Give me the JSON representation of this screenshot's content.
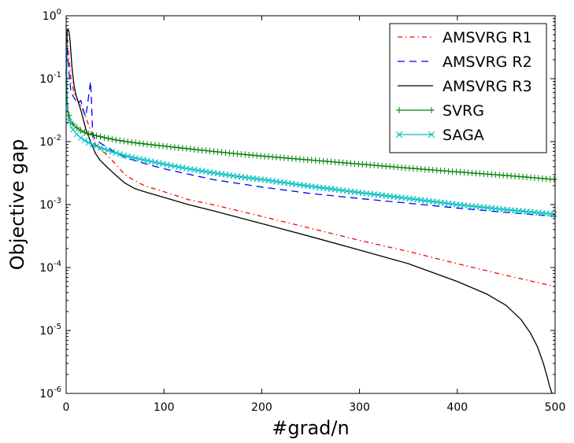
{
  "chart_data": {
    "type": "line",
    "title": "",
    "xlabel": "#grad/n",
    "ylabel": "Objective gap",
    "xlim": [
      0,
      500
    ],
    "ylim_log10": [
      -6,
      0
    ],
    "yscale": "log",
    "grid": false,
    "legend_position": "top-right",
    "x_ticks": [
      {
        "value": 0,
        "label": "0"
      },
      {
        "value": 100,
        "label": "100"
      },
      {
        "value": 200,
        "label": "200"
      },
      {
        "value": 300,
        "label": "300"
      },
      {
        "value": 400,
        "label": "400"
      },
      {
        "value": 500,
        "label": "500"
      }
    ],
    "y_ticks": [
      {
        "exp": 0,
        "base": "10",
        "sup": "0"
      },
      {
        "exp": -1,
        "base": "10",
        "sup": "-1"
      },
      {
        "exp": -2,
        "base": "10",
        "sup": "-2"
      },
      {
        "exp": -3,
        "base": "10",
        "sup": "-3"
      },
      {
        "exp": -4,
        "base": "10",
        "sup": "-4"
      },
      {
        "exp": -5,
        "base": "10",
        "sup": "-5"
      },
      {
        "exp": -6,
        "base": "10",
        "sup": "-6"
      }
    ],
    "series": [
      {
        "name": "AMSVRG R1",
        "color": "#ff0000",
        "style": "dashdot",
        "marker": "none",
        "x": [
          0,
          1,
          2,
          3,
          5,
          8,
          12,
          16,
          20,
          25,
          30,
          35,
          40,
          50,
          60,
          70,
          80,
          100,
          125,
          150,
          200,
          250,
          300,
          350,
          400,
          450,
          500
        ],
        "y": [
          0.12,
          0.45,
          0.32,
          0.2,
          0.1,
          0.06,
          0.045,
          0.035,
          0.025,
          0.015,
          0.009,
          0.0075,
          0.0065,
          0.0045,
          0.003,
          0.0024,
          0.002,
          0.0016,
          0.0012,
          0.001,
          0.00065,
          0.00042,
          0.00027,
          0.00018,
          0.000115,
          7.5e-05,
          5e-05
        ]
      },
      {
        "name": "AMSVRG R2",
        "color": "#0000ff",
        "style": "dashed",
        "marker": "none",
        "x": [
          0,
          1,
          2,
          3,
          5,
          8,
          12,
          15,
          18,
          20,
          22,
          24,
          25,
          26,
          27,
          28,
          30,
          35,
          40,
          50,
          60,
          80,
          100,
          150,
          200,
          250,
          300,
          350,
          400,
          450,
          500
        ],
        "y": [
          0.08,
          0.3,
          0.18,
          0.12,
          0.06,
          0.05,
          0.04,
          0.045,
          0.03,
          0.025,
          0.04,
          0.07,
          0.09,
          0.04,
          0.015,
          0.012,
          0.011,
          0.0095,
          0.0085,
          0.0068,
          0.0056,
          0.0045,
          0.0037,
          0.0025,
          0.0019,
          0.0015,
          0.00125,
          0.00105,
          0.00088,
          0.00075,
          0.00065
        ]
      },
      {
        "name": "AMSVRG R3",
        "color": "#000000",
        "style": "solid",
        "marker": "none",
        "x": [
          0,
          1,
          2,
          3,
          4,
          6,
          8,
          10,
          13,
          16,
          20,
          25,
          30,
          35,
          40,
          50,
          60,
          70,
          80,
          100,
          125,
          150,
          200,
          250,
          300,
          350,
          400,
          430,
          450,
          465,
          475,
          482,
          488,
          492,
          495,
          497
        ],
        "y": [
          0.12,
          0.55,
          0.62,
          0.55,
          0.4,
          0.15,
          0.08,
          0.055,
          0.04,
          0.028,
          0.016,
          0.01,
          0.0065,
          0.005,
          0.0042,
          0.003,
          0.0022,
          0.0018,
          0.0016,
          0.0013,
          0.001,
          0.0008,
          0.0005,
          0.00031,
          0.00019,
          0.000115,
          6e-05,
          3.8e-05,
          2.5e-05,
          1.5e-05,
          9e-06,
          5.5e-06,
          3e-06,
          1.8e-06,
          1.2e-06,
          1e-06
        ]
      },
      {
        "name": "SVRG",
        "color": "#008000",
        "style": "solid",
        "marker": "plus",
        "x": [
          0,
          1,
          2,
          3,
          4,
          5,
          7,
          10,
          15,
          20,
          25,
          30,
          40,
          50,
          60,
          70,
          80,
          100,
          125,
          150,
          175,
          200,
          250,
          300,
          350,
          400,
          450,
          500
        ],
        "y": [
          0.25,
          0.05,
          0.03,
          0.026,
          0.023,
          0.021,
          0.019,
          0.017,
          0.015,
          0.0138,
          0.013,
          0.0125,
          0.0115,
          0.0107,
          0.0101,
          0.0096,
          0.0092,
          0.0085,
          0.0077,
          0.007,
          0.0064,
          0.0059,
          0.0051,
          0.0044,
          0.0038,
          0.0033,
          0.0029,
          0.0025
        ]
      },
      {
        "name": "SAGA",
        "color": "#00bfbf",
        "style": "solid",
        "marker": "x",
        "x": [
          0,
          1,
          2,
          3,
          4,
          5,
          7,
          10,
          15,
          20,
          25,
          30,
          40,
          50,
          60,
          70,
          80,
          100,
          125,
          150,
          175,
          200,
          250,
          300,
          350,
          400,
          450,
          500
        ],
        "y": [
          0.7,
          0.04,
          0.025,
          0.021,
          0.019,
          0.017,
          0.0155,
          0.0135,
          0.0115,
          0.0102,
          0.0093,
          0.0086,
          0.0075,
          0.0067,
          0.006,
          0.0055,
          0.0051,
          0.0044,
          0.0037,
          0.0032,
          0.0028,
          0.0025,
          0.00195,
          0.00155,
          0.00125,
          0.001,
          0.00083,
          0.0007
        ]
      }
    ]
  }
}
